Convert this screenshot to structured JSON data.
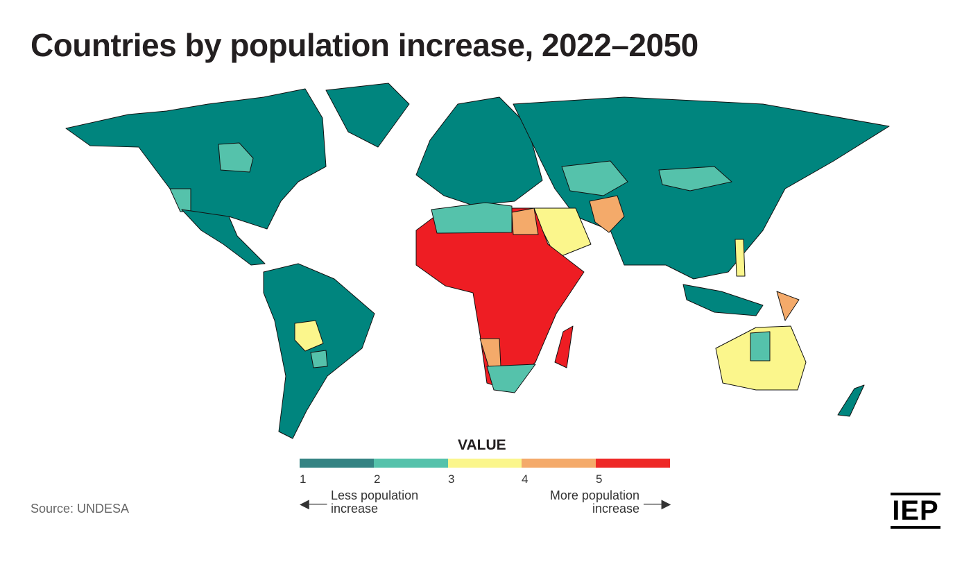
{
  "title": "Countries by population increase, 2022–2050",
  "legend": {
    "title": "VALUE",
    "classes": [
      {
        "value": 1,
        "color": "#348383"
      },
      {
        "value": 2,
        "color": "#55c2ab"
      },
      {
        "value": 3,
        "color": "#fbf68c"
      },
      {
        "value": 4,
        "color": "#f4aa6a"
      },
      {
        "value": 5,
        "color": "#ee2826"
      }
    ],
    "ticks": [
      "1",
      "2",
      "3",
      "4",
      "5"
    ],
    "less_label": "Less population increase",
    "more_label": "More population increase",
    "less_arrow": "left-arrow-icon",
    "more_arrow": "right-arrow-icon"
  },
  "map_colors": {
    "level1": "#00857e",
    "level2": "#55c2ab",
    "level3": "#fbf68c",
    "level4": "#f4aa6a",
    "level5": "#ee1d23"
  },
  "source": "Source: UNDESA",
  "logo": "IEP"
}
